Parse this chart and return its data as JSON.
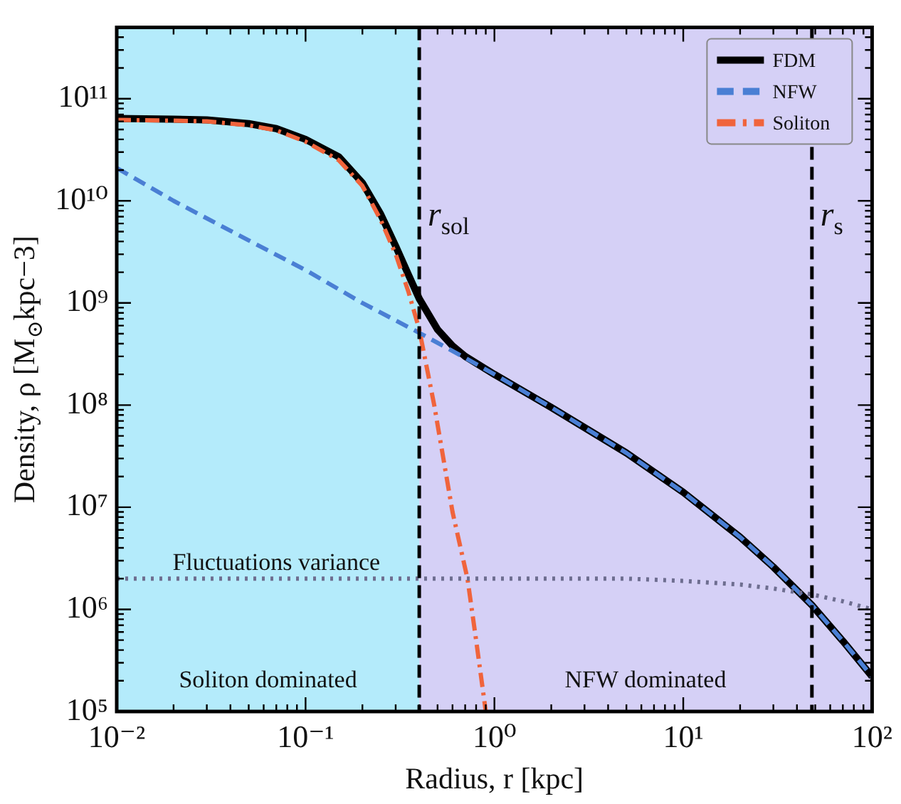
{
  "chart_data": {
    "type": "line",
    "xlabel": "Radius, r [kpc]",
    "ylabel": "Density, ρ [M$_{⊙}$kpc−3]",
    "log": "xy",
    "marker": "none",
    "legend": "top right",
    "xlim": [
      0.01,
      100
    ],
    "ylim": [
      100000,
      500000000000
    ],
    "xticks": [
      {
        "value": 0.01,
        "label": "10⁻²"
      },
      {
        "value": 0.02,
        "label": null
      },
      {
        "value": 0.03,
        "label": null
      },
      {
        "value": 0.04,
        "label": null
      },
      {
        "value": 0.05,
        "label": null
      },
      {
        "value": 0.06,
        "label": null
      },
      {
        "value": 0.07,
        "label": null
      },
      {
        "value": 0.08,
        "label": null
      },
      {
        "value": 0.09,
        "label": null
      },
      {
        "value": 0.1,
        "label": "10⁻¹"
      },
      {
        "value": 0.2,
        "label": null
      },
      {
        "value": 0.3,
        "label": null
      },
      {
        "value": 0.4,
        "label": null
      },
      {
        "value": 0.5,
        "label": null
      },
      {
        "value": 0.6,
        "label": null
      },
      {
        "value": 0.7,
        "label": null
      },
      {
        "value": 0.8,
        "label": null
      },
      {
        "value": 0.9,
        "label": null
      },
      {
        "value": 1,
        "label": "10⁰"
      },
      {
        "value": 2,
        "label": null
      },
      {
        "value": 3,
        "label": null
      },
      {
        "value": 4,
        "label": null
      },
      {
        "value": 5,
        "label": null
      },
      {
        "value": 6,
        "label": null
      },
      {
        "value": 7,
        "label": null
      },
      {
        "value": 8,
        "label": null
      },
      {
        "value": 9,
        "label": null
      },
      {
        "value": 10,
        "label": "10¹"
      },
      {
        "value": 20,
        "label": null
      },
      {
        "value": 30,
        "label": null
      },
      {
        "value": 40,
        "label": null
      },
      {
        "value": 50,
        "label": null
      },
      {
        "value": 60,
        "label": null
      },
      {
        "value": 70,
        "label": null
      },
      {
        "value": 80,
        "label": null
      },
      {
        "value": 90,
        "label": null
      },
      {
        "value": 100,
        "label": "10²"
      }
    ],
    "yticks": [
      {
        "value": 100000,
        "label": "10⁵"
      },
      {
        "value": 200000,
        "label": null
      },
      {
        "value": 300000,
        "label": null
      },
      {
        "value": 400000,
        "label": null
      },
      {
        "value": 500000,
        "label": null
      },
      {
        "value": 600000,
        "label": null
      },
      {
        "value": 700000,
        "label": null
      },
      {
        "value": 800000,
        "label": null
      },
      {
        "value": 900000,
        "label": null
      },
      {
        "value": 1000000,
        "label": "10⁶"
      },
      {
        "value": 2000000,
        "label": null
      },
      {
        "value": 3000000,
        "label": null
      },
      {
        "value": 4000000,
        "label": null
      },
      {
        "value": 5000000,
        "label": null
      },
      {
        "value": 6000000,
        "label": null
      },
      {
        "value": 7000000,
        "label": null
      },
      {
        "value": 8000000,
        "label": null
      },
      {
        "value": 9000000,
        "label": null
      },
      {
        "value": 10000000,
        "label": "10⁷"
      },
      {
        "value": 20000000,
        "label": null
      },
      {
        "value": 30000000,
        "label": null
      },
      {
        "value": 40000000,
        "label": null
      },
      {
        "value": 50000000,
        "label": null
      },
      {
        "value": 60000000,
        "label": null
      },
      {
        "value": 70000000,
        "label": null
      },
      {
        "value": 80000000,
        "label": null
      },
      {
        "value": 90000000,
        "label": null
      },
      {
        "value": 100000000,
        "label": "10⁸"
      },
      {
        "value": 200000000,
        "label": null
      },
      {
        "value": 300000000,
        "label": null
      },
      {
        "value": 400000000,
        "label": null
      },
      {
        "value": 500000000,
        "label": null
      },
      {
        "value": 600000000,
        "label": null
      },
      {
        "value": 700000000,
        "label": null
      },
      {
        "value": 800000000,
        "label": null
      },
      {
        "value": 900000000,
        "label": null
      },
      {
        "value": 1000000000,
        "label": "10⁹"
      },
      {
        "value": 2000000000,
        "label": null
      },
      {
        "value": 3000000000,
        "label": null
      },
      {
        "value": 4000000000,
        "label": null
      },
      {
        "value": 5000000000,
        "label": null
      },
      {
        "value": 6000000000,
        "label": null
      },
      {
        "value": 7000000000,
        "label": null
      },
      {
        "value": 8000000000,
        "label": null
      },
      {
        "value": 9000000000,
        "label": null
      },
      {
        "value": 10000000000,
        "label": "10¹⁰"
      },
      {
        "value": 20000000000,
        "label": null
      },
      {
        "value": 30000000000,
        "label": null
      },
      {
        "value": 40000000000,
        "label": null
      },
      {
        "value": 50000000000,
        "label": null
      },
      {
        "value": 60000000000,
        "label": null
      },
      {
        "value": 70000000000,
        "label": null
      },
      {
        "value": 80000000000,
        "label": null
      },
      {
        "value": 90000000000,
        "label": null
      },
      {
        "value": 100000000000,
        "label": "10¹¹"
      },
      {
        "value": 200000000000,
        "label": null
      },
      {
        "value": 300000000000,
        "label": null
      },
      {
        "value": 400000000000,
        "label": null
      },
      {
        "value": 500000000000,
        "label": null
      }
    ],
    "bands": [
      {
        "axis": "x",
        "from": 0.01,
        "to": 0.4,
        "label": "Soliton dominated",
        "color": "#b4ebfb"
      },
      {
        "axis": "x",
        "from": 0.4,
        "to": 100,
        "label": "NFW dominated",
        "color": "#d5d0f6"
      }
    ],
    "ref_lines": [
      {
        "axis": "x",
        "value": 0.4,
        "label": "r$_{sol}$",
        "color": "#000000",
        "line_style": "dashed"
      },
      {
        "axis": "x",
        "value": 48,
        "label": "r$_{s}$",
        "color": "#000000",
        "line_style": "dashed"
      }
    ],
    "annotations": [
      {
        "text": "Fluctuations variance",
        "x": 0.07,
        "y": 2000000
      }
    ],
    "series": [
      {
        "name": "FDM",
        "color": "#000000",
        "line_style": "solid",
        "x": [
          0.01,
          0.02,
          0.03,
          0.05,
          0.07,
          0.1,
          0.15,
          0.2,
          0.25,
          0.3,
          0.35,
          0.4,
          0.5,
          0.6,
          0.7,
          1,
          2,
          5,
          10,
          20,
          30,
          48,
          70,
          100
        ],
        "values": [
          64000000000,
          63000000000,
          62000000000,
          57000000000,
          51000000000,
          40000000000,
          27000000000,
          15000000000,
          7400000000,
          3600000000,
          1900000000,
          1100000000,
          550000000,
          380000000,
          300000000,
          200000000,
          95000000,
          34000000,
          14000000,
          5100000,
          2600000,
          1100000,
          490000,
          220000
        ]
      },
      {
        "name": "NFW",
        "color": "#4a7fd4",
        "line_style": "dashed",
        "x": [
          0.01,
          0.02,
          0.05,
          0.1,
          0.2,
          0.4,
          0.7,
          1,
          2,
          5,
          10,
          20,
          30,
          48,
          70,
          100
        ],
        "values": [
          21000000000,
          10000000000,
          4100000000,
          2100000000,
          1000000000,
          510000000,
          290000000,
          200000000,
          95000000,
          34000000,
          14000000,
          5100000,
          2600000,
          1100000,
          490000,
          220000
        ]
      },
      {
        "name": "Soliton",
        "color": "#f0643c",
        "line_style": "dashdot",
        "x": [
          0.01,
          0.02,
          0.03,
          0.05,
          0.07,
          0.1,
          0.15,
          0.2,
          0.25,
          0.3,
          0.35,
          0.4,
          0.48,
          0.6,
          0.72,
          0.8,
          0.9
        ],
        "values": [
          62000000000,
          61000000000,
          60000000000,
          55000000000,
          49000000000,
          38000000000,
          25000000000,
          14000000000,
          6500000000,
          3000000000,
          1300000000,
          550000000,
          100000000,
          9000000,
          2000000,
          500000,
          100000
        ]
      },
      {
        "color": "#6e6e90",
        "line_style": "dotted",
        "x": [
          0.01,
          0.1,
          1,
          5,
          10,
          20,
          30,
          48,
          70,
          100
        ],
        "values": [
          2000000,
          2000000,
          2000000,
          2000000,
          1900000,
          1750000,
          1600000,
          1400000,
          1200000,
          1000000
        ]
      }
    ]
  }
}
